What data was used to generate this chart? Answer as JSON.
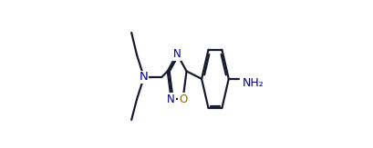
{
  "bg_color": "#ffffff",
  "line_color": "#1a1a2e",
  "line_width": 1.6,
  "font_size": 8.5,
  "N_color": "#00008b",
  "O_color": "#8B6914",
  "NH2_color": "#00008b",
  "figsize": [
    4.09,
    1.63
  ],
  "dpi": 100,
  "xlim": [
    0.0,
    1.0
  ],
  "ylim": [
    0.0,
    1.0
  ]
}
